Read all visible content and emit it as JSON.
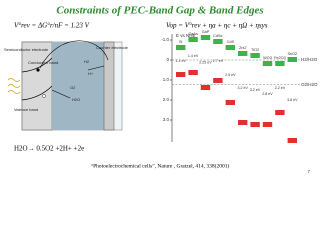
{
  "title": "Constraints of PEC-Band Gap & Band Edges",
  "equations": {
    "rev": "V°rev = ΔG°r/nF = 1.23 V",
    "op": "Vop = V°rev + ηa + ηc + ηΩ + ηsys",
    "reaction": "H2O→ 0.5O2 +2H+ +2e"
  },
  "cell": {
    "semiconductor": "Semiconductor electrode",
    "counter": "Counter electrode",
    "conduction": "Conduction band",
    "valence": "Valence band",
    "water": "H2O",
    "oxygen": "O2",
    "hydrogen": "H2",
    "hplus": "H+"
  },
  "band_chart": {
    "axis": "E vs NHE",
    "ticks": [
      "-1.0",
      "0",
      "1.0",
      "2.0",
      "3.0"
    ],
    "couples": [
      "H2/H2O",
      "O2/H2O"
    ],
    "materials": [
      {
        "name": "Si",
        "gap": "1.1 eV"
      },
      {
        "name": "GaAs",
        "gap": "1.4 eV"
      },
      {
        "name": "GaP",
        "gap": "2.25 eV"
      },
      {
        "name": "CdSe",
        "gap": "1.7 eV"
      },
      {
        "name": "CdS",
        "gap": "2.5 eV"
      },
      {
        "name": "ZnO",
        "gap": "3.2 eV"
      },
      {
        "name": "TiO2",
        "gap": "3.2 eV"
      },
      {
        "name": "WO3",
        "gap": "2.8 eV"
      },
      {
        "name": "Fe2O3",
        "gap": "2.2 eV"
      },
      {
        "name": "SnO2",
        "gap": "3.8 eV"
      }
    ]
  },
  "citation": "“Photoelectrochemical cells”, Nature , Gratzel, 414, 338(2001)",
  "page": "7"
}
